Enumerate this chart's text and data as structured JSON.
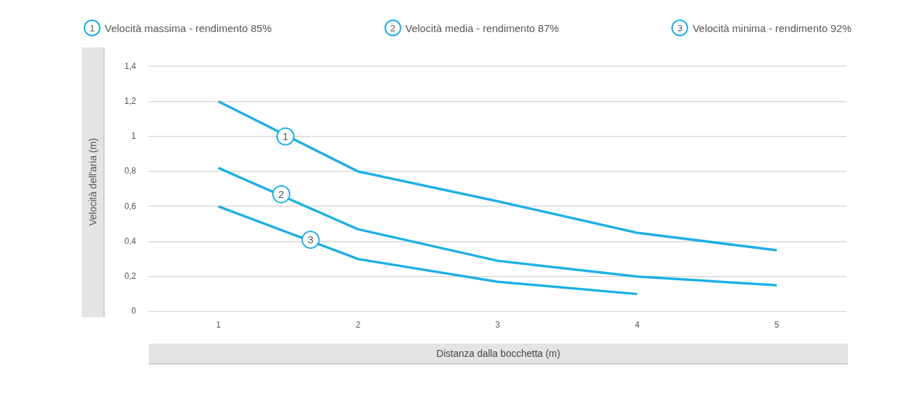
{
  "chart_data": {
    "type": "line",
    "xlabel": "Distanza dalla bocchetta  (m)",
    "ylabel": "Velocità  dell'aria  (m)",
    "x": [
      1,
      2,
      3,
      4,
      5
    ],
    "xlim": [
      0.5,
      5.5
    ],
    "xticks": [
      1,
      2,
      3,
      4,
      5
    ],
    "ylim": [
      0,
      1.4
    ],
    "yticks": [
      0,
      {
        "value": 0.2,
        "label": "0,2"
      },
      {
        "value": 0.4,
        "label": "0,4"
      },
      {
        "value": 0.6,
        "label": "0,6"
      },
      {
        "value": 0.8,
        "label": "0,8"
      },
      1,
      {
        "value": 1.2,
        "label": "1,2"
      },
      {
        "value": 1.4,
        "label": "1,4"
      }
    ],
    "series": [
      {
        "name": "Velocità massima - rendimento 85%",
        "color": "#1ab0e8",
        "values": [
          1.2,
          0.8,
          0.63,
          0.45,
          0.35
        ]
      },
      {
        "name": "Velocità media - rendimento 87%",
        "color": "#1ab0e8",
        "values": [
          0.82,
          0.47,
          0.29,
          0.2,
          0.15
        ]
      },
      {
        "name": "Velocità minima - rendimento 92%",
        "color": "#1ab0e8",
        "values": [
          0.6,
          0.3,
          0.17,
          0.1,
          null
        ]
      }
    ],
    "annotations": [
      {
        "text": "1",
        "x": 1.48,
        "y": 1.0
      },
      {
        "text": "2",
        "x": 1.45,
        "y": 0.67
      },
      {
        "text": "3",
        "x": 1.66,
        "y": 0.41
      }
    ],
    "grid": "y",
    "legend": "top",
    "marker": "none",
    "line_style": "solid"
  }
}
